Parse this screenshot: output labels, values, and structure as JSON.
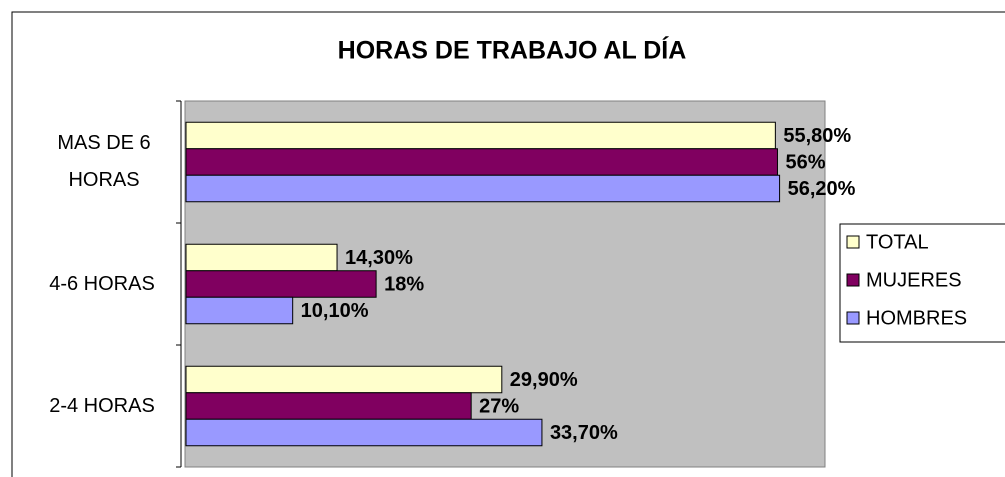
{
  "chart_data": {
    "type": "hbar",
    "title": "HORAS DE TRABAJO AL DÍA",
    "categories": [
      "MAS DE 6 HORAS",
      "4-6 HORAS",
      "2-4 HORAS"
    ],
    "series": [
      {
        "name": "TOTAL",
        "color": "#ffffcc",
        "values": [
          55.8,
          14.3,
          29.9
        ],
        "value_labels": [
          "55,80%",
          "14,30%",
          "29,90%"
        ]
      },
      {
        "name": "MUJERES",
        "color": "#800060",
        "values": [
          56,
          18,
          27
        ],
        "value_labels": [
          "56%",
          "18%",
          "27%"
        ]
      },
      {
        "name": "HOMBRES",
        "color": "#9999ff",
        "values": [
          56.2,
          10.1,
          33.7
        ],
        "value_labels": [
          "56,20%",
          "10,10%",
          "33,70%"
        ]
      }
    ],
    "xlim": [
      0,
      60.5
    ],
    "legend": "right"
  }
}
